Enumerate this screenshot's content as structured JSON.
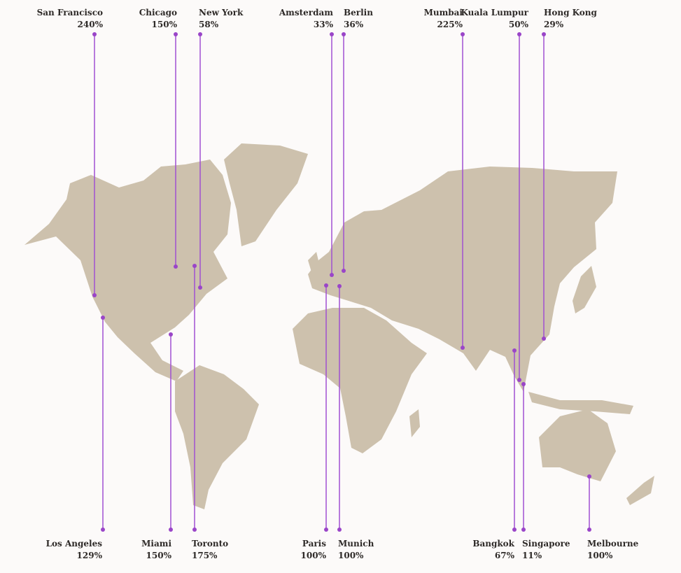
{
  "cities": [
    {
      "name": "San Francisco",
      "share": "240%"
    },
    {
      "name": "Chicago",
      "share": "150%"
    },
    {
      "name": "New York",
      "share": "58%"
    },
    {
      "name": "Amsterdam",
      "share": "33%"
    },
    {
      "name": "Berlin",
      "share": "36%"
    },
    {
      "name": "Mumbai",
      "share": "225%"
    },
    {
      "name": "Kuala Lumpur",
      "share": "50%"
    },
    {
      "name": "Hong Kong",
      "share": "29%"
    },
    {
      "name": "Los Angeles",
      "share": "129%"
    },
    {
      "name": "Miami",
      "share": "150%"
    },
    {
      "name": "Toronto",
      "share": "175%"
    },
    {
      "name": "Paris",
      "share": "100%"
    },
    {
      "name": "Munich",
      "share": "100%"
    },
    {
      "name": "Bangkok",
      "share": "67%"
    },
    {
      "name": "Singapore",
      "share": "11%"
    },
    {
      "name": "Melbourne",
      "share": "100%"
    }
  ]
}
